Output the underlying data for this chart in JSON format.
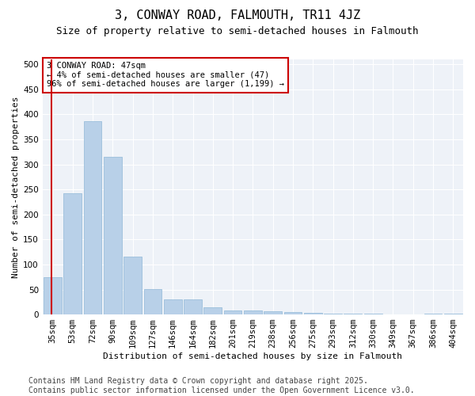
{
  "title": "3, CONWAY ROAD, FALMOUTH, TR11 4JZ",
  "subtitle": "Size of property relative to semi-detached houses in Falmouth",
  "xlabel": "Distribution of semi-detached houses by size in Falmouth",
  "ylabel": "Number of semi-detached properties",
  "categories": [
    "35sqm",
    "53sqm",
    "72sqm",
    "90sqm",
    "109sqm",
    "127sqm",
    "146sqm",
    "164sqm",
    "182sqm",
    "201sqm",
    "219sqm",
    "238sqm",
    "256sqm",
    "275sqm",
    "293sqm",
    "312sqm",
    "330sqm",
    "349sqm",
    "367sqm",
    "386sqm",
    "404sqm"
  ],
  "values": [
    75,
    243,
    386,
    315,
    115,
    51,
    30,
    30,
    15,
    8,
    8,
    7,
    5,
    3,
    2,
    1,
    1,
    0,
    0,
    1,
    1
  ],
  "bar_color": "#b8d0e8",
  "bar_edge_color": "#90b8d8",
  "marker_line_color": "#cc0000",
  "annotation_text": "3 CONWAY ROAD: 47sqm\n← 4% of semi-detached houses are smaller (47)\n96% of semi-detached houses are larger (1,199) →",
  "annotation_box_color": "#ffffff",
  "annotation_box_edge": "#cc0000",
  "footer_text": "Contains HM Land Registry data © Crown copyright and database right 2025.\nContains public sector information licensed under the Open Government Licence v3.0.",
  "ylim": [
    0,
    510
  ],
  "yticks": [
    0,
    50,
    100,
    150,
    200,
    250,
    300,
    350,
    400,
    450,
    500
  ],
  "bg_color": "#eef2f8",
  "title_fontsize": 11,
  "subtitle_fontsize": 9,
  "footer_fontsize": 7,
  "axis_label_fontsize": 8,
  "tick_fontsize": 7.5,
  "ylabel_fontsize": 8
}
